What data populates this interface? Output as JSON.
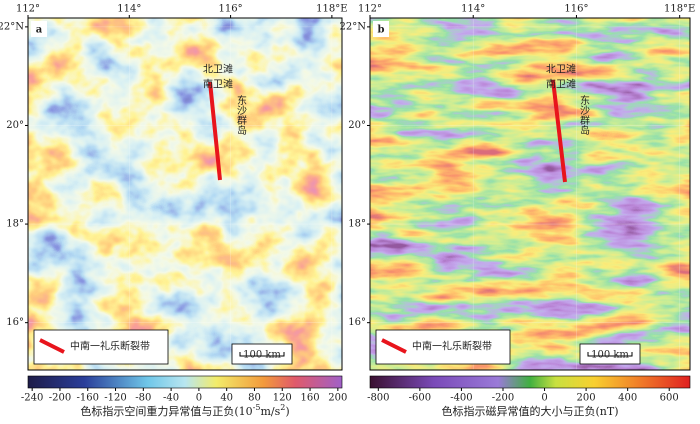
{
  "panels": [
    {
      "label": "a",
      "lon_range": [
        112,
        118.2
      ],
      "lat_range": [
        15.04,
        22.18
      ],
      "lon_ticks": [
        {
          "value": 112,
          "label": "112°"
        },
        {
          "value": 114,
          "label": "114°"
        },
        {
          "value": 116,
          "label": "116°"
        },
        {
          "value": 118,
          "label": "118°E"
        }
      ],
      "lat_ticks": [
        {
          "value": 22,
          "label": "22°N"
        },
        {
          "value": 20,
          "label": "20°"
        },
        {
          "value": 18,
          "label": "18°"
        },
        {
          "value": 16,
          "label": "16°"
        }
      ],
      "annotations": [
        "北卫滩",
        "南卫滩",
        "东沙群岛"
      ],
      "legend": "中南一礼乐断裂带",
      "scale_bar": "100 km",
      "colorbar": {
        "range": [
          -246,
          206
        ],
        "ticks": [
          -240,
          -200,
          -160,
          -120,
          -80,
          -40,
          0,
          40,
          80,
          120,
          160,
          200
        ]
      },
      "caption": [
        "色标指示空间重力异常值与正负(10",
        "-5",
        "m/s",
        "2",
        ")"
      ]
    },
    {
      "label": "b",
      "lon_range": [
        112,
        118.2
      ],
      "lat_range": [
        15.04,
        22.18
      ],
      "lon_ticks": [
        {
          "value": 112,
          "label": "112°"
        },
        {
          "value": 114,
          "label": "114°"
        },
        {
          "value": 116,
          "label": "116°"
        },
        {
          "value": 118,
          "label": "118°E"
        }
      ],
      "lat_ticks": [
        {
          "value": 22,
          "label": "22°N"
        },
        {
          "value": 20,
          "label": "20°"
        },
        {
          "value": 18,
          "label": "18°"
        },
        {
          "value": 16,
          "label": "16°"
        }
      ],
      "annotations": [
        "北卫滩",
        "南卫滩",
        "东沙群岛"
      ],
      "legend": "中南一礼乐断裂带",
      "scale_bar": "100 km",
      "colorbar": {
        "range": [
          -840,
          700
        ],
        "ticks": [
          -800,
          -600,
          -400,
          -200,
          0,
          200,
          400,
          600
        ]
      },
      "caption": [
        "色标指示磁异常值的大小与正负(nT)"
      ]
    }
  ]
}
